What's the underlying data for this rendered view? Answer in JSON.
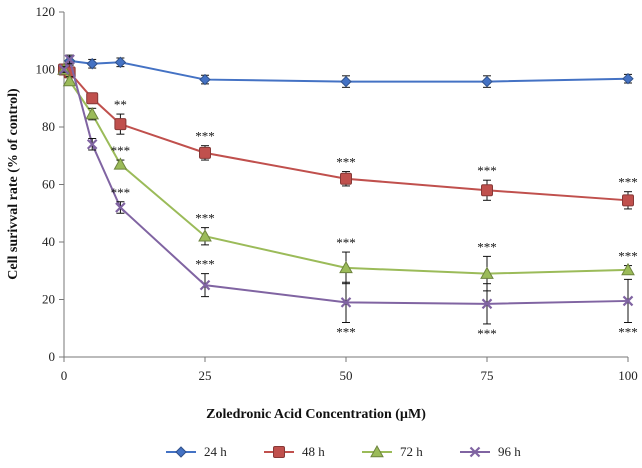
{
  "chart_data": {
    "type": "line",
    "title": "",
    "xlabel": "Zoledronic Acid Concentration (µM)",
    "ylabel": "Cell surivval rate  (% of control)",
    "xlim": [
      0,
      100
    ],
    "ylim": [
      0,
      120
    ],
    "x_ticks": [
      0,
      25,
      50,
      75,
      100
    ],
    "y_ticks": [
      0,
      20,
      40,
      60,
      80,
      100,
      120
    ],
    "x": [
      0,
      1,
      5,
      10,
      25,
      50,
      75,
      100
    ],
    "grid": false,
    "legend_position": "bottom",
    "series": [
      {
        "name": "24 h",
        "color": "#4472C4",
        "marker": "diamond",
        "values": [
          100,
          103,
          102,
          102.5,
          96.5,
          95.8,
          95.8,
          96.8
        ],
        "errors": [
          1,
          1.5,
          1.5,
          1.5,
          1.5,
          2,
          2,
          1.5
        ],
        "significance": [
          "",
          "",
          "",
          "",
          "",
          "",
          "",
          ""
        ]
      },
      {
        "name": "48 h",
        "color": "#C0504D",
        "marker": "square",
        "values": [
          100,
          99,
          90,
          81,
          71,
          62,
          58,
          54.5
        ],
        "errors": [
          1,
          1.5,
          1.5,
          3.5,
          2.5,
          2.5,
          3.5,
          3
        ],
        "significance": [
          "",
          "",
          "",
          "**",
          "***",
          "***",
          "***",
          "***"
        ]
      },
      {
        "name": "72 h",
        "color": "#9BBB59",
        "marker": "triangle",
        "values": [
          100,
          96,
          84.5,
          67,
          42,
          31,
          29,
          30.3
        ],
        "errors": [
          1,
          1.5,
          2,
          1.5,
          3,
          5.5,
          6,
          1.5
        ],
        "significance": [
          "",
          "",
          "",
          "***",
          "***",
          "***",
          "***",
          "***"
        ]
      },
      {
        "name": "96 h",
        "color": "#8064A2",
        "marker": "x",
        "values": [
          100,
          103.5,
          74,
          52,
          25,
          19,
          18.5,
          19.5
        ],
        "errors": [
          1,
          1.5,
          2,
          2,
          4,
          7,
          7,
          7.5
        ],
        "significance": [
          "",
          "",
          "",
          "***",
          "***",
          "***",
          "***",
          "***"
        ]
      }
    ]
  }
}
